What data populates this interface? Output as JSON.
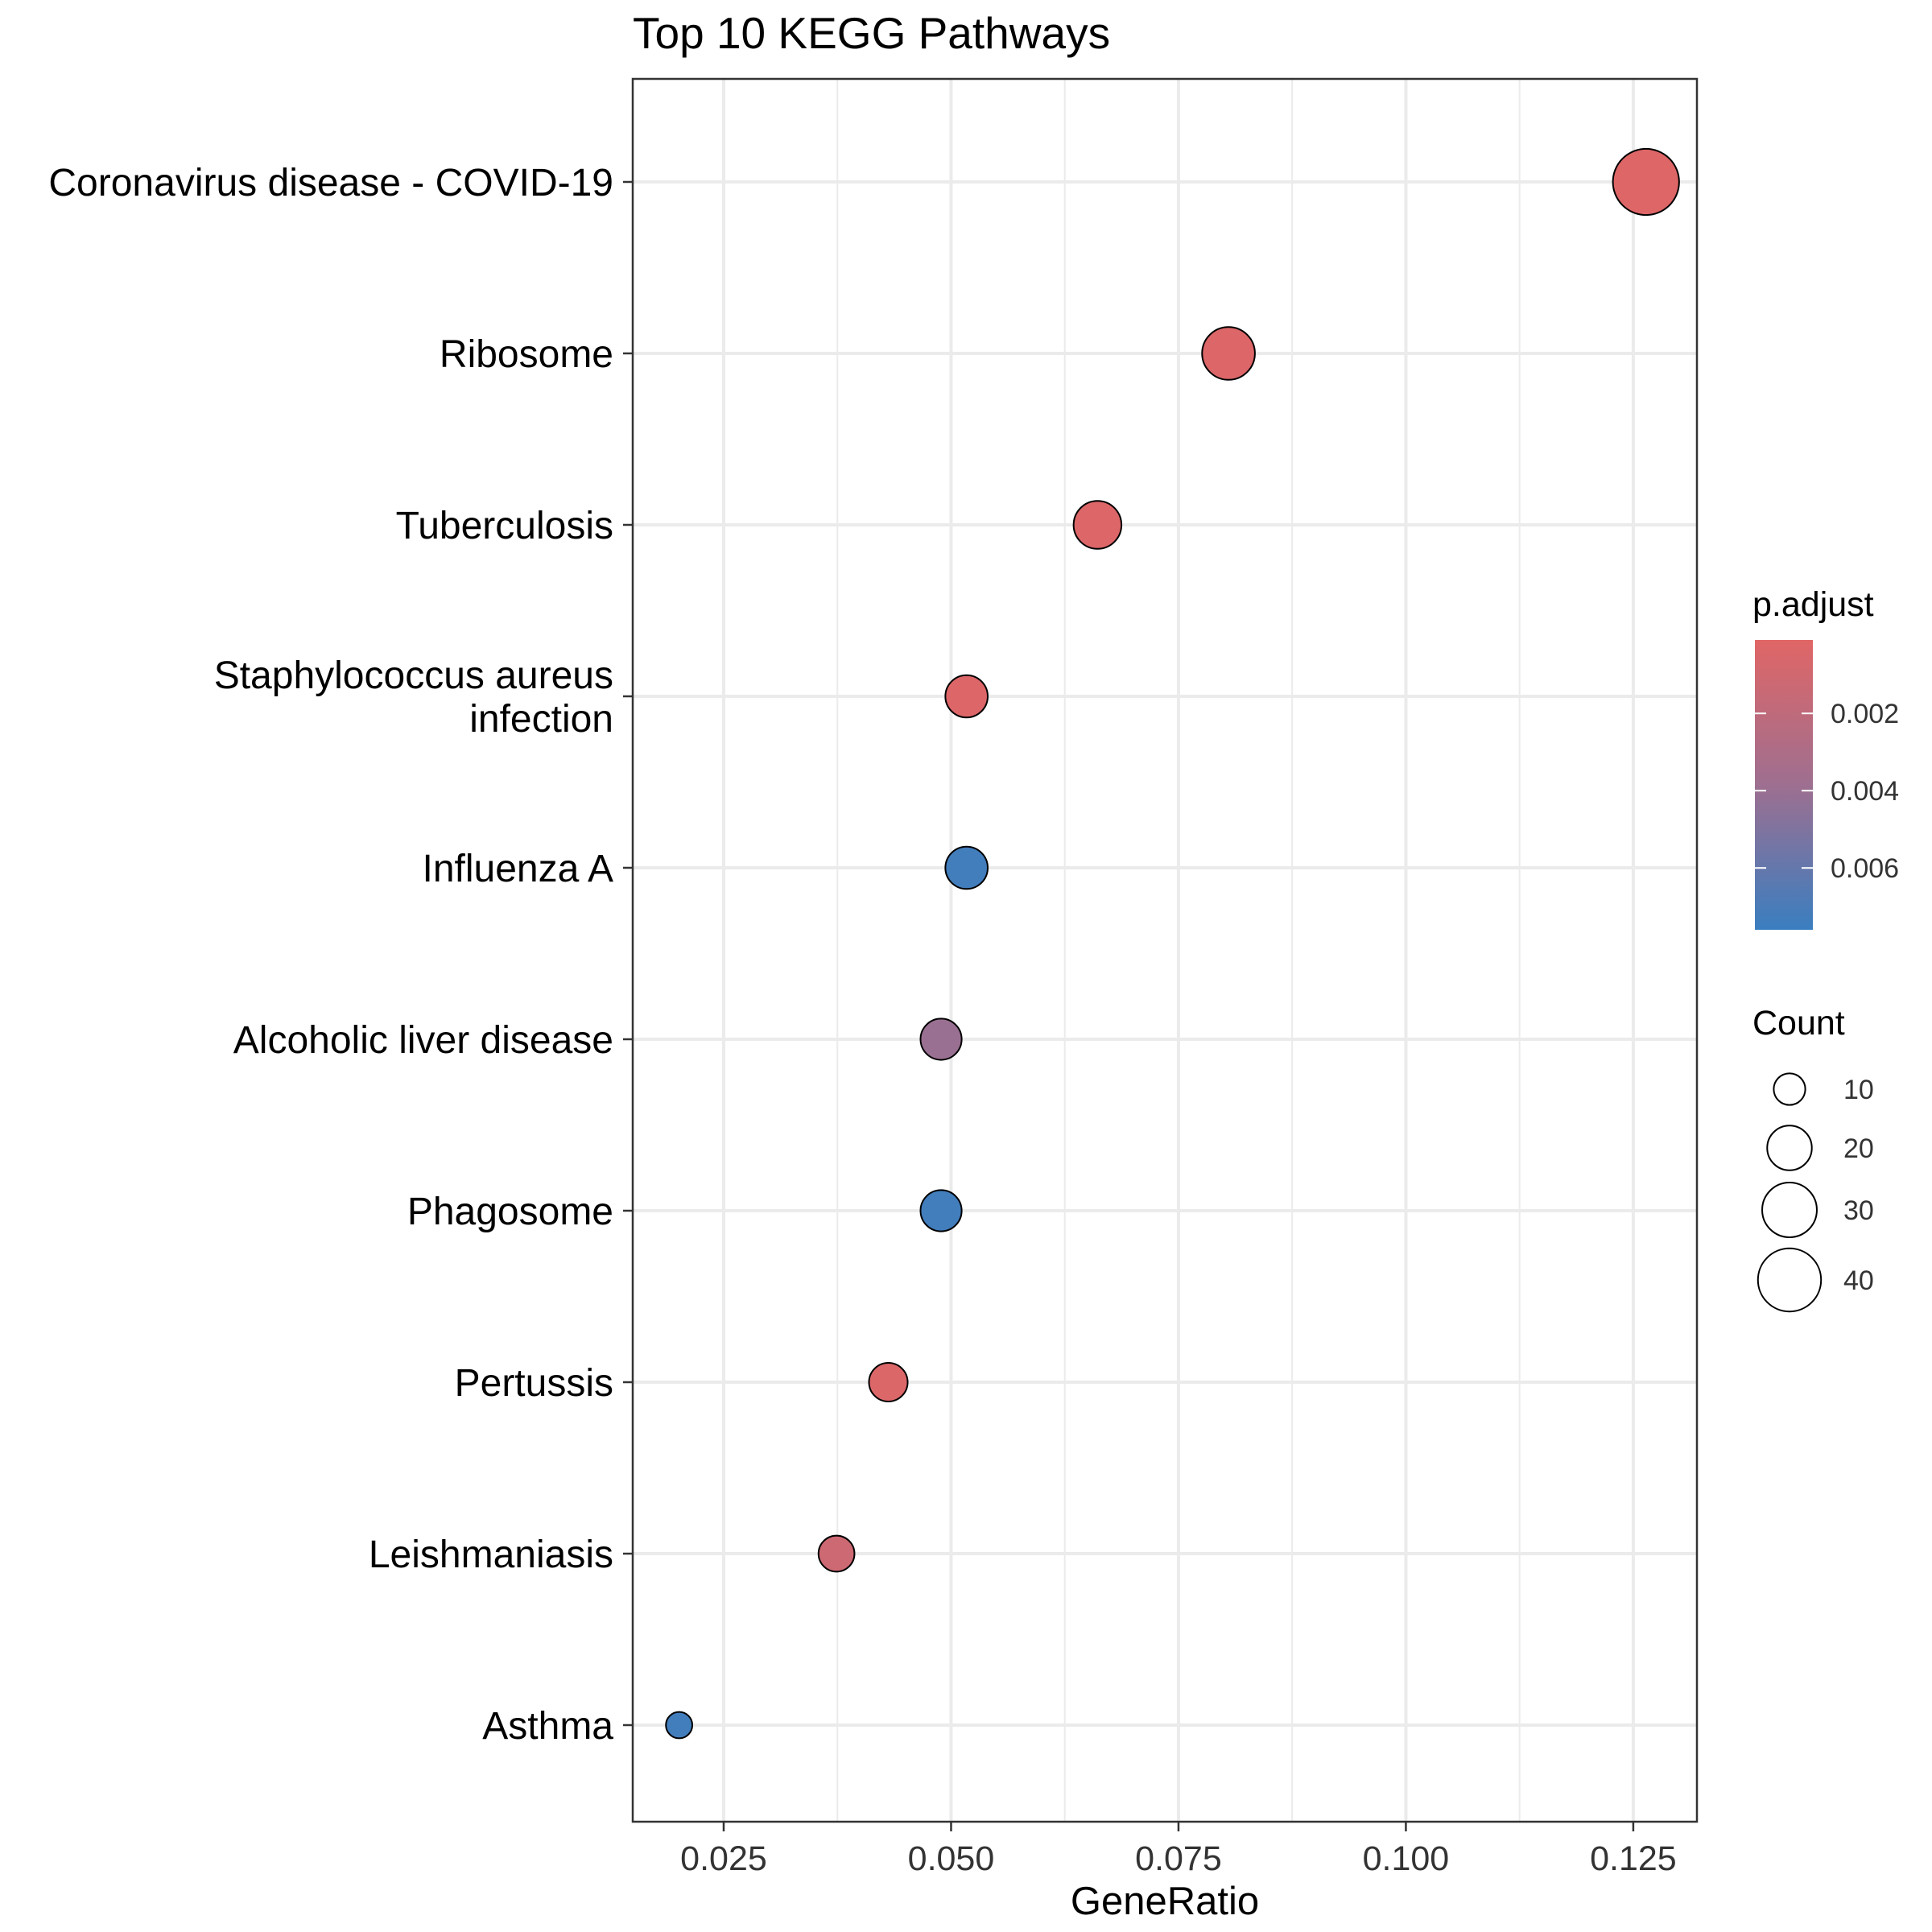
{
  "chart_data": {
    "type": "scatter",
    "title": "Top 10 KEGG Pathways",
    "xlabel": "GeneRatio",
    "ylabel": "",
    "xlim": [
      0.015,
      0.132
    ],
    "x_ticks": [
      0.025,
      0.05,
      0.075,
      0.1,
      0.125
    ],
    "x_tick_labels": [
      "0.025",
      "0.050",
      "0.075",
      "0.100",
      "0.125"
    ],
    "grid": true,
    "categories": [
      "Coronavirus disease - COVID-19",
      "Ribosome",
      "Tuberculosis",
      "Staphylococcus aureus infection",
      "Influenza A",
      "Alcoholic liver disease",
      "Phagosome",
      "Pertussis",
      "Leishmaniasis",
      "Asthma"
    ],
    "category_label_lines": [
      [
        "Coronavirus disease - COVID-19"
      ],
      [
        "Ribosome"
      ],
      [
        "Tuberculosis"
      ],
      [
        "Staphylococcus aureus",
        "infection"
      ],
      [
        "Influenza A"
      ],
      [
        "Alcoholic liver disease"
      ],
      [
        "Phagosome"
      ],
      [
        "Pertussis"
      ],
      [
        "Leishmaniasis"
      ],
      [
        "Asthma"
      ]
    ],
    "points": [
      {
        "pathway": "Coronavirus disease - COVID-19",
        "GeneRatio": 0.1264,
        "Count": 44,
        "p_adjust": 0.0002
      },
      {
        "pathway": "Ribosome",
        "GeneRatio": 0.0805,
        "Count": 28,
        "p_adjust": 0.0003
      },
      {
        "pathway": "Tuberculosis",
        "GeneRatio": 0.0661,
        "Count": 23,
        "p_adjust": 0.0003
      },
      {
        "pathway": "Staphylococcus aureus infection",
        "GeneRatio": 0.0517,
        "Count": 18,
        "p_adjust": 0.0003
      },
      {
        "pathway": "Influenza A",
        "GeneRatio": 0.0517,
        "Count": 18,
        "p_adjust": 0.0073
      },
      {
        "pathway": "Alcoholic liver disease",
        "GeneRatio": 0.0489,
        "Count": 17,
        "p_adjust": 0.004
      },
      {
        "pathway": "Phagosome",
        "GeneRatio": 0.0489,
        "Count": 17,
        "p_adjust": 0.0073
      },
      {
        "pathway": "Pertussis",
        "GeneRatio": 0.0431,
        "Count": 15,
        "p_adjust": 0.0004
      },
      {
        "pathway": "Leishmaniasis",
        "GeneRatio": 0.0374,
        "Count": 13,
        "p_adjust": 0.0012
      },
      {
        "pathway": "Asthma",
        "GeneRatio": 0.0201,
        "Count": 7,
        "p_adjust": 0.0073
      }
    ],
    "color_legend": {
      "title": "p.adjust",
      "low_color": "#e06666",
      "mid_color": "#9e6f90",
      "high_color": "#3a7ec0",
      "range": [
        0.0001,
        0.0076
      ],
      "ticks": [
        0.002,
        0.004,
        0.006
      ],
      "tick_labels": [
        "0.002",
        "0.004",
        "0.006"
      ]
    },
    "size_legend": {
      "title": "Count",
      "values": [
        10,
        20,
        30,
        40
      ],
      "labels": [
        "10",
        "20",
        "30",
        "40"
      ]
    }
  }
}
